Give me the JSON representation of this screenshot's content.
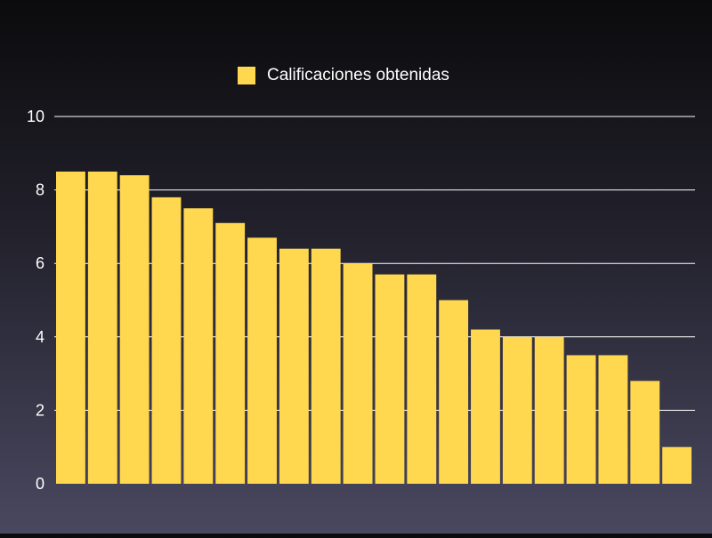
{
  "chart_data": {
    "type": "bar",
    "title": "",
    "xlabel": "",
    "ylabel": "",
    "ylim": [
      0,
      10
    ],
    "yticks": [
      0,
      2,
      4,
      6,
      8,
      10
    ],
    "grid": true,
    "legend_position": "top-center",
    "series": [
      {
        "name": "Calificaciones obtenidas",
        "color": "#ffd84f",
        "values": [
          8.5,
          8.5,
          8.4,
          7.8,
          7.5,
          7.1,
          6.7,
          6.4,
          6.4,
          6.0,
          5.7,
          5.7,
          5.0,
          4.2,
          4.0,
          4.0,
          3.5,
          3.5,
          2.8,
          1.0
        ]
      }
    ]
  },
  "colors": {
    "gridline": "#ffffff",
    "text": "#ffffff"
  }
}
